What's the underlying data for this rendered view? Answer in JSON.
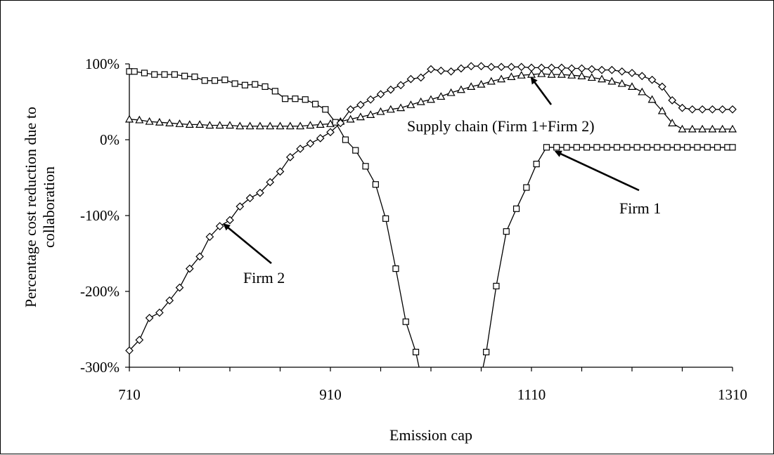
{
  "chart_data": {
    "type": "line",
    "title": "",
    "xlabel": "Emission cap",
    "ylabel": "Percentage cost reduction due to collaboration",
    "xlim": [
      710,
      1310
    ],
    "ylim": [
      -300,
      100
    ],
    "xticks": [
      710,
      910,
      1110,
      1310
    ],
    "xtick_labels": [
      "710",
      "910",
      "1110",
      "1310"
    ],
    "yticks": [
      -300,
      -200,
      -100,
      0,
      100
    ],
    "ytick_labels": [
      "-300%",
      "-200%",
      "-100%",
      "0%",
      "100%"
    ],
    "grid": false,
    "legend": "none",
    "series": [
      {
        "name": "Supply chain (Firm 1+Firm 2)",
        "marker": "triangle",
        "x": [
          710,
          720,
          730,
          740,
          750,
          760,
          770,
          780,
          790,
          800,
          810,
          820,
          830,
          840,
          850,
          860,
          870,
          880,
          890,
          900,
          910,
          920,
          930,
          940,
          950,
          960,
          970,
          980,
          990,
          1000,
          1010,
          1020,
          1030,
          1040,
          1050,
          1060,
          1070,
          1080,
          1090,
          1100,
          1110,
          1120,
          1130,
          1140,
          1150,
          1160,
          1170,
          1180,
          1190,
          1200,
          1210,
          1220,
          1230,
          1240,
          1250,
          1260,
          1270,
          1280,
          1290,
          1300,
          1310
        ],
        "values": [
          27,
          26,
          24,
          23,
          22,
          21,
          20,
          20,
          19,
          19,
          19,
          18,
          18,
          18,
          18,
          18,
          18,
          18,
          19,
          20,
          21,
          24,
          27,
          30,
          33,
          37,
          40,
          42,
          46,
          50,
          53,
          57,
          62,
          66,
          70,
          73,
          77,
          80,
          83,
          85,
          86,
          87,
          86,
          86,
          85,
          84,
          82,
          80,
          77,
          74,
          70,
          63,
          53,
          38,
          22,
          14,
          14,
          14,
          14,
          14,
          14
        ]
      },
      {
        "name": "Firm 1",
        "marker": "square",
        "x": [
          710,
          715,
          725,
          735,
          745,
          755,
          765,
          775,
          785,
          795,
          805,
          815,
          825,
          835,
          845,
          855,
          865,
          875,
          885,
          895,
          905,
          915,
          925,
          935,
          945,
          955,
          965,
          975,
          985,
          995,
          1005,
          1015,
          1025,
          1035,
          1045,
          1055,
          1065,
          1075,
          1085,
          1095,
          1105,
          1115,
          1125,
          1135,
          1145,
          1155,
          1165,
          1175,
          1185,
          1195,
          1205,
          1215,
          1225,
          1235,
          1245,
          1255,
          1265,
          1275,
          1285,
          1295,
          1305,
          1310
        ],
        "values": [
          90,
          90,
          88,
          86,
          86,
          86,
          84,
          83,
          78,
          78,
          79,
          74,
          72,
          73,
          70,
          64,
          54,
          54,
          53,
          47,
          40,
          23,
          0,
          -14,
          -35,
          -59,
          -104,
          -170,
          -240,
          -280,
          "-",
          "-",
          "-",
          "-",
          "-",
          "-",
          -280,
          -193,
          -121,
          -91,
          -63,
          -32,
          -10,
          -10,
          -10,
          -10,
          -10,
          -10,
          -10,
          -10,
          -10,
          -10,
          -10,
          -10,
          -10,
          -10,
          -10,
          -10,
          -10,
          -10,
          -10,
          -10
        ]
      },
      {
        "name": "Firm 2",
        "marker": "diamond",
        "x": [
          710,
          720,
          730,
          740,
          750,
          760,
          770,
          780,
          790,
          800,
          810,
          820,
          830,
          840,
          850,
          860,
          870,
          880,
          890,
          900,
          910,
          920,
          930,
          940,
          950,
          960,
          970,
          980,
          990,
          1000,
          1010,
          1020,
          1030,
          1040,
          1050,
          1060,
          1070,
          1080,
          1090,
          1100,
          1110,
          1120,
          1130,
          1140,
          1150,
          1160,
          1170,
          1180,
          1190,
          1200,
          1210,
          1220,
          1230,
          1240,
          1250,
          1260,
          1270,
          1280,
          1290,
          1300,
          1310
        ],
        "values": [
          -278,
          -264,
          -235,
          -228,
          -212,
          -195,
          -170,
          -154,
          -128,
          -114,
          -106,
          -88,
          -77,
          -70,
          -56,
          -42,
          -23,
          -12,
          -5,
          2,
          10,
          22,
          40,
          46,
          53,
          60,
          66,
          72,
          80,
          82,
          93,
          91,
          90,
          94,
          97,
          97,
          96,
          96,
          96,
          96,
          95,
          95,
          95,
          95,
          94,
          94,
          93,
          92,
          92,
          90,
          88,
          84,
          79,
          70,
          52,
          42,
          40,
          40,
          40,
          40,
          40
        ]
      }
    ],
    "annotations": [
      {
        "text": "Supply chain (Firm 1+Firm 2)",
        "points_to": [
          1110,
          87
        ]
      },
      {
        "text": "Firm 1",
        "points_to": [
          1130,
          -10
        ]
      },
      {
        "text": "Firm 2",
        "points_to": [
          800,
          -106
        ]
      }
    ]
  }
}
